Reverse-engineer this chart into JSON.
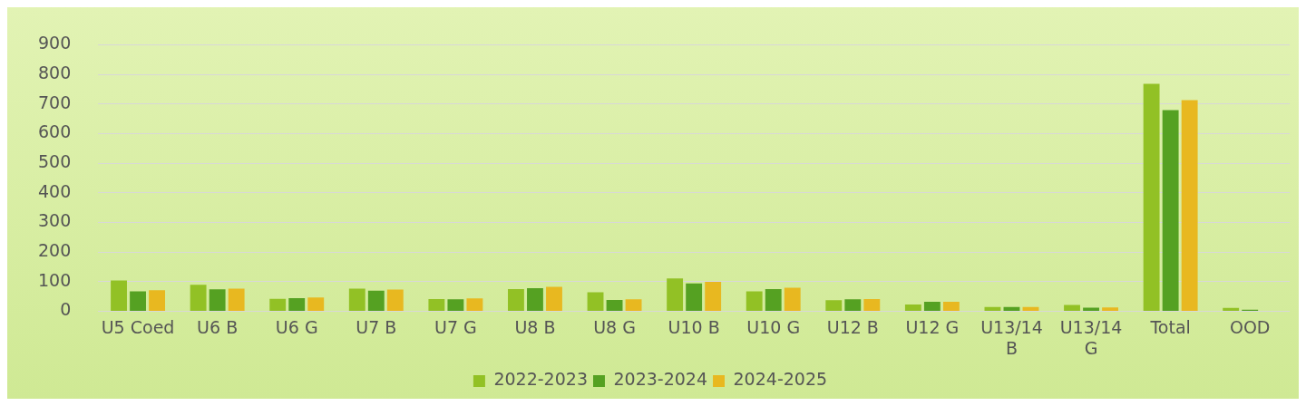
{
  "chart_data": {
    "type": "bar",
    "categories": [
      "U5 Coed",
      "U6 B",
      "U6 G",
      "U7 B",
      "U7 G",
      "U8 B",
      "U8 G",
      "U10 B",
      "U10 G",
      "U12 B",
      "U12 G",
      "U13/14 B",
      "U13/14 G",
      "Total",
      "OOD"
    ],
    "series": [
      {
        "name": "2022-2023",
        "color": "#92c125",
        "values": [
          104,
          89,
          42,
          76,
          41,
          75,
          64,
          111,
          67,
          37,
          23,
          14,
          21,
          768,
          11
        ]
      },
      {
        "name": "2023-2024",
        "color": "#55a122",
        "values": [
          67,
          74,
          44,
          69,
          40,
          78,
          38,
          94,
          75,
          40,
          32,
          14,
          12,
          679,
          5
        ]
      },
      {
        "name": "2024-2025",
        "color": "#e8b820",
        "values": [
          71,
          76,
          46,
          73,
          43,
          82,
          40,
          99,
          79,
          41,
          32,
          14,
          13,
          713,
          null
        ]
      }
    ],
    "ylim": [
      0,
      900
    ],
    "yticks": [
      0,
      100,
      200,
      300,
      400,
      500,
      600,
      700,
      800,
      900
    ],
    "grid": "y",
    "legend": "bottom"
  }
}
